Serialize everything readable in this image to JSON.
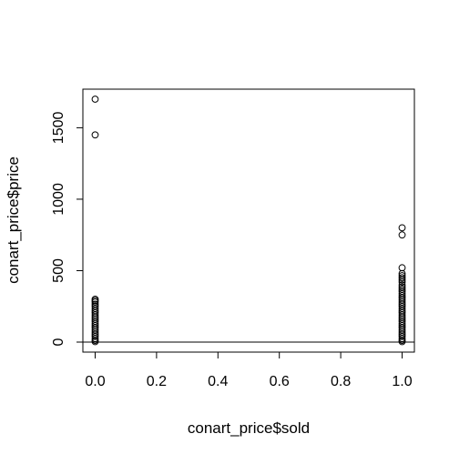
{
  "chart_data": {
    "type": "scatter",
    "title": "",
    "xlabel": "conart_price$sold",
    "ylabel": "conart_price$price",
    "xlim": [
      -0.04,
      1.04
    ],
    "ylim": [
      -70,
      1770
    ],
    "x_ticks": [
      0.0,
      0.2,
      0.4,
      0.6,
      0.8,
      1.0
    ],
    "x_tick_labels": [
      "0.0",
      "0.2",
      "0.4",
      "0.6",
      "0.8",
      "1.0"
    ],
    "y_ticks": [
      0,
      500,
      1000,
      1500
    ],
    "y_tick_labels": [
      "0",
      "500",
      "1000",
      "1500"
    ],
    "reference_line_y": 0,
    "grid": false,
    "legend": "none",
    "marker": "open-circle",
    "points": [
      {
        "x": 0,
        "y": 1700
      },
      {
        "x": 0,
        "y": 1450
      },
      {
        "x": 0,
        "y": 300
      },
      {
        "x": 0,
        "y": 290
      },
      {
        "x": 0,
        "y": 280
      },
      {
        "x": 0,
        "y": 265
      },
      {
        "x": 0,
        "y": 250
      },
      {
        "x": 0,
        "y": 235
      },
      {
        "x": 0,
        "y": 220
      },
      {
        "x": 0,
        "y": 205
      },
      {
        "x": 0,
        "y": 190
      },
      {
        "x": 0,
        "y": 175
      },
      {
        "x": 0,
        "y": 160
      },
      {
        "x": 0,
        "y": 145
      },
      {
        "x": 0,
        "y": 130
      },
      {
        "x": 0,
        "y": 115
      },
      {
        "x": 0,
        "y": 100
      },
      {
        "x": 0,
        "y": 85
      },
      {
        "x": 0,
        "y": 70
      },
      {
        "x": 0,
        "y": 55
      },
      {
        "x": 0,
        "y": 40
      },
      {
        "x": 0,
        "y": 25
      },
      {
        "x": 0,
        "y": 12
      },
      {
        "x": 0,
        "y": 3
      },
      {
        "x": 1,
        "y": 800
      },
      {
        "x": 1,
        "y": 750
      },
      {
        "x": 1,
        "y": 520
      },
      {
        "x": 1,
        "y": 480
      },
      {
        "x": 1,
        "y": 465
      },
      {
        "x": 1,
        "y": 450
      },
      {
        "x": 1,
        "y": 435
      },
      {
        "x": 1,
        "y": 420
      },
      {
        "x": 1,
        "y": 400
      },
      {
        "x": 1,
        "y": 385
      },
      {
        "x": 1,
        "y": 370
      },
      {
        "x": 1,
        "y": 355
      },
      {
        "x": 1,
        "y": 340
      },
      {
        "x": 1,
        "y": 325
      },
      {
        "x": 1,
        "y": 310
      },
      {
        "x": 1,
        "y": 295
      },
      {
        "x": 1,
        "y": 280
      },
      {
        "x": 1,
        "y": 265
      },
      {
        "x": 1,
        "y": 250
      },
      {
        "x": 1,
        "y": 235
      },
      {
        "x": 1,
        "y": 220
      },
      {
        "x": 1,
        "y": 205
      },
      {
        "x": 1,
        "y": 190
      },
      {
        "x": 1,
        "y": 175
      },
      {
        "x": 1,
        "y": 160
      },
      {
        "x": 1,
        "y": 145
      },
      {
        "x": 1,
        "y": 130
      },
      {
        "x": 1,
        "y": 115
      },
      {
        "x": 1,
        "y": 100
      },
      {
        "x": 1,
        "y": 85
      },
      {
        "x": 1,
        "y": 70
      },
      {
        "x": 1,
        "y": 55
      },
      {
        "x": 1,
        "y": 40
      },
      {
        "x": 1,
        "y": 25
      },
      {
        "x": 1,
        "y": 12
      },
      {
        "x": 1,
        "y": 3
      }
    ]
  }
}
